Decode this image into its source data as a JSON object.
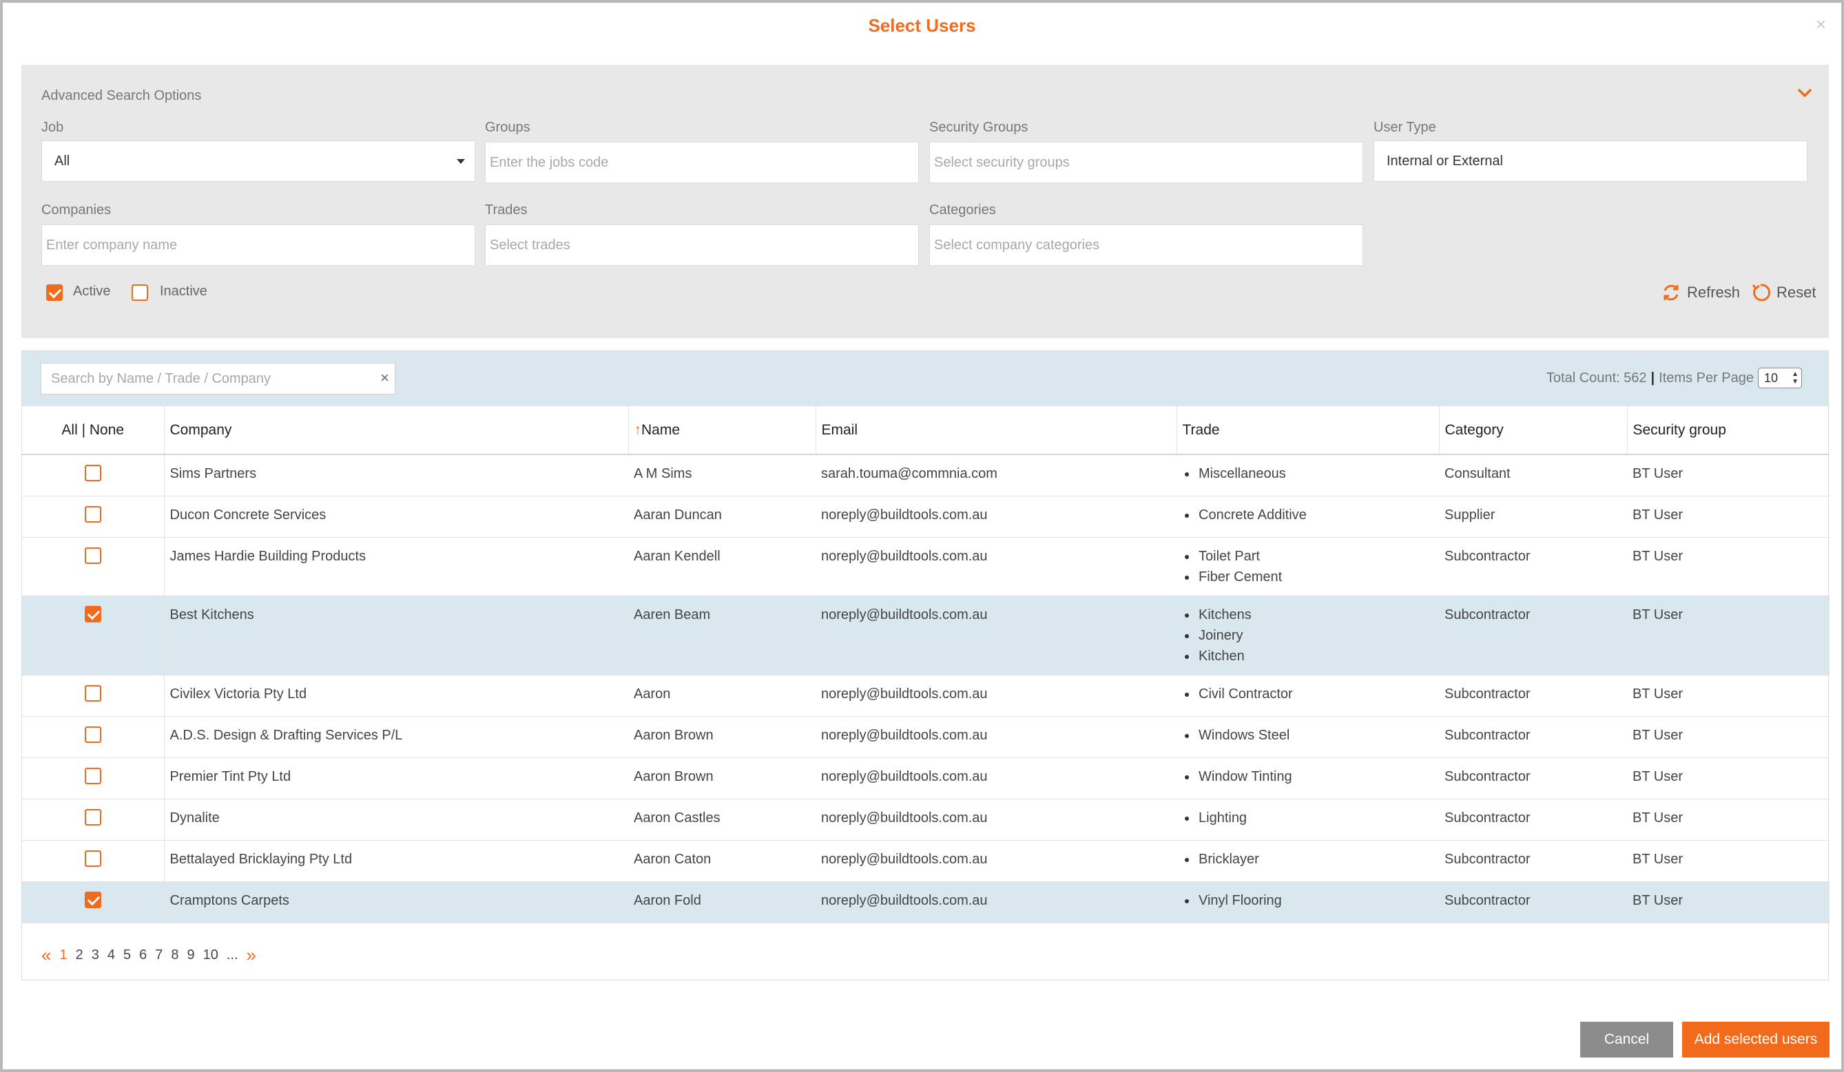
{
  "dialog": {
    "title": "Select Users",
    "close_glyph": "×"
  },
  "advanced": {
    "title": "Advanced Search Options",
    "fields": {
      "job": {
        "label": "Job",
        "value": "All"
      },
      "groups": {
        "label": "Groups",
        "placeholder": "Enter the jobs code"
      },
      "security_groups": {
        "label": "Security Groups",
        "placeholder": "Select security groups"
      },
      "user_type": {
        "label": "User Type",
        "value": "Internal or External"
      },
      "companies": {
        "label": "Companies",
        "placeholder": "Enter company name"
      },
      "trades": {
        "label": "Trades",
        "placeholder": "Select trades"
      },
      "categories": {
        "label": "Categories",
        "placeholder": "Select company categories"
      }
    },
    "filters": {
      "active": {
        "label": "Active",
        "checked": true
      },
      "inactive": {
        "label": "Inactive",
        "checked": false
      }
    },
    "refresh_label": "Refresh",
    "reset_label": "Reset"
  },
  "results": {
    "search_placeholder": "Search by Name / Trade / Company",
    "total_count_label": "Total Count: 562",
    "separator": "|",
    "items_per_page_label": "Items Per Page",
    "items_per_page": "10",
    "columns": {
      "select": "All | None",
      "company": "Company",
      "name_arrow": "↑",
      "name": "Name",
      "email": "Email",
      "trade": "Trade",
      "category": "Category",
      "security_group": "Security group"
    },
    "rows": [
      {
        "checked": false,
        "company": "Sims Partners",
        "name": "A M Sims",
        "email": "sarah.touma@commnia.com",
        "trades": [
          "Miscellaneous"
        ],
        "category": "Consultant",
        "security_group": "BT User"
      },
      {
        "checked": false,
        "company": "Ducon Concrete Services",
        "name": "Aaran Duncan",
        "email": "noreply@buildtools.com.au",
        "trades": [
          "Concrete Additive"
        ],
        "category": "Supplier",
        "security_group": "BT User"
      },
      {
        "checked": false,
        "company": "James Hardie Building Products",
        "name": "Aaran Kendell",
        "email": "noreply@buildtools.com.au",
        "trades": [
          "Toilet Part",
          "Fiber Cement"
        ],
        "category": "Subcontractor",
        "security_group": "BT User"
      },
      {
        "checked": true,
        "company": "Best Kitchens",
        "name": "Aaren Beam",
        "email": "noreply@buildtools.com.au",
        "trades": [
          "Kitchens",
          "Joinery",
          "Kitchen"
        ],
        "category": "Subcontractor",
        "security_group": "BT User"
      },
      {
        "checked": false,
        "company": "Civilex Victoria Pty Ltd",
        "name": "Aaron",
        "email": "noreply@buildtools.com.au",
        "trades": [
          "Civil Contractor"
        ],
        "category": "Subcontractor",
        "security_group": "BT User"
      },
      {
        "checked": false,
        "company": "A.D.S. Design & Drafting Services P/L",
        "name": "Aaron Brown",
        "email": "noreply@buildtools.com.au",
        "trades": [
          "Windows Steel"
        ],
        "category": "Subcontractor",
        "security_group": "BT User"
      },
      {
        "checked": false,
        "company": "Premier Tint Pty Ltd",
        "name": "Aaron Brown",
        "email": "noreply@buildtools.com.au",
        "trades": [
          "Window Tinting"
        ],
        "category": "Subcontractor",
        "security_group": "BT User"
      },
      {
        "checked": false,
        "company": "Dynalite",
        "name": "Aaron Castles",
        "email": "noreply@buildtools.com.au",
        "trades": [
          "Lighting"
        ],
        "category": "Subcontractor",
        "security_group": "BT User"
      },
      {
        "checked": false,
        "company": "Bettalayed Bricklaying Pty Ltd",
        "name": "Aaron Caton",
        "email": "noreply@buildtools.com.au",
        "trades": [
          "Bricklayer"
        ],
        "category": "Subcontractor",
        "security_group": "BT User"
      },
      {
        "checked": true,
        "company": "Cramptons Carpets",
        "name": "Aaron Fold",
        "email": "noreply@buildtools.com.au",
        "trades": [
          "Vinyl Flooring"
        ],
        "category": "Subcontractor",
        "security_group": "BT User"
      }
    ],
    "pager": {
      "prev": "«",
      "pages": [
        "1",
        "2",
        "3",
        "4",
        "5",
        "6",
        "7",
        "8",
        "9",
        "10"
      ],
      "current": "1",
      "ellipsis": "...",
      "next": "»"
    }
  },
  "buttons": {
    "cancel": "Cancel",
    "add": "Add selected users"
  },
  "colors": {
    "accent": "#f26b1d",
    "selected_row": "#d9e7ee",
    "panel": "#e8e8e8"
  },
  "icons": {
    "refresh": "refresh-icon",
    "reset": "reset-icon",
    "toggle": "chevron-down-icon",
    "clear": "close-icon"
  }
}
